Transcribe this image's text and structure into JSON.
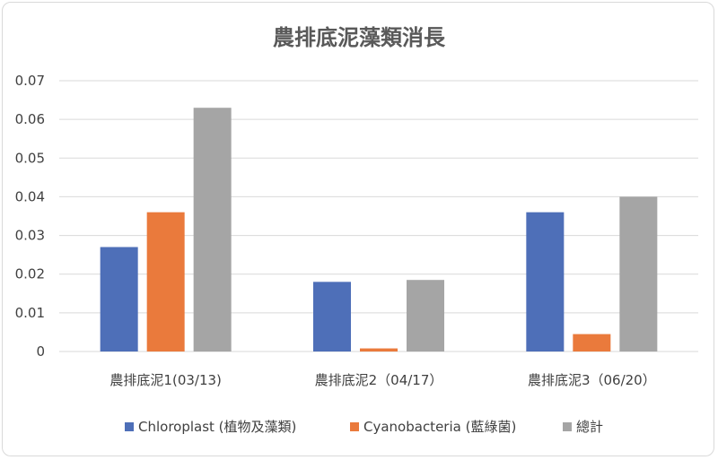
{
  "chart_data": {
    "type": "bar",
    "title": "農排底泥藻類消長",
    "xlabel": "",
    "ylabel": "",
    "categories": [
      "農排底泥1(03/13)",
      "農排底泥2（04/17）",
      "農排底泥3（06/20）"
    ],
    "series": [
      {
        "name": "Chloroplast (植物及藻類)",
        "values": [
          0.027,
          0.018,
          0.036
        ],
        "color": "#4e6fb8"
      },
      {
        "name": "Cyanobacteria (藍綠菌)",
        "values": [
          0.036,
          0.0008,
          0.0045
        ],
        "color": "#ea7a3c"
      },
      {
        "name": "總計",
        "values": [
          0.063,
          0.0185,
          0.04
        ],
        "color": "#a5a5a5"
      }
    ],
    "ylim": [
      0,
      0.07
    ],
    "yticks": [
      "0",
      "0.01",
      "0.02",
      "0.03",
      "0.04",
      "0.05",
      "0.06",
      "0.07"
    ],
    "grid": true,
    "legend": "bottom"
  }
}
